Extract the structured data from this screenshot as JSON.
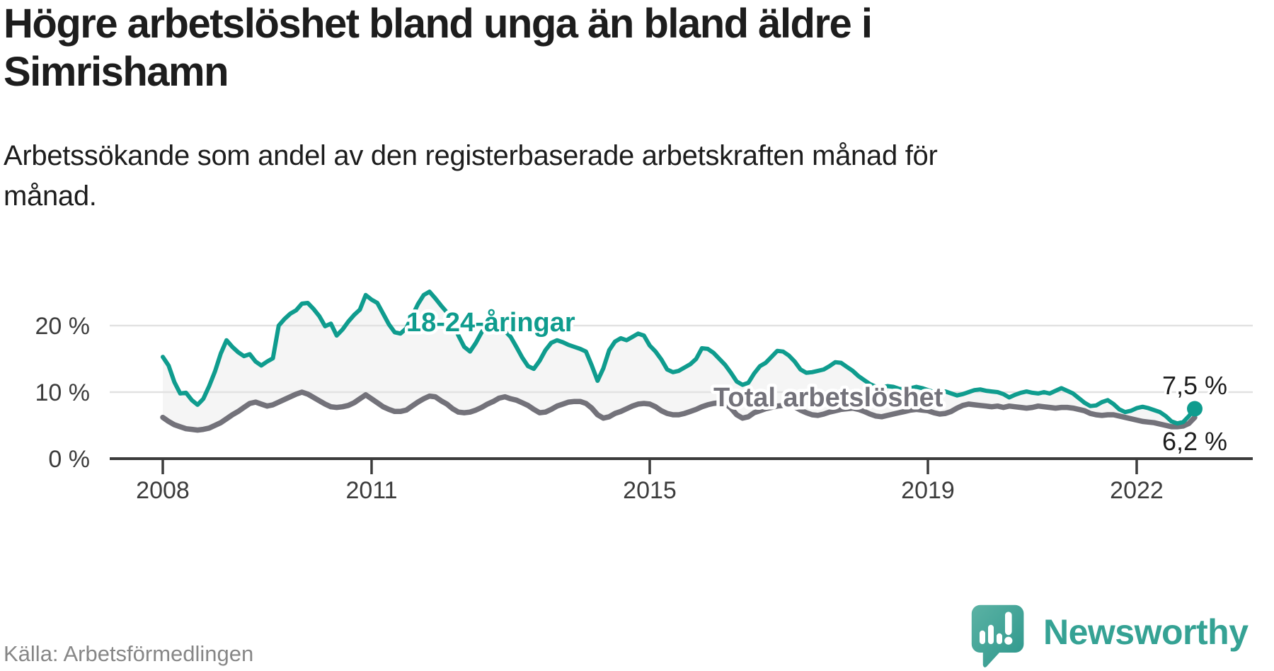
{
  "header": {
    "title_line1": "Högre arbetslöshet bland unga än bland äldre i",
    "title_line2": "Simrishamn",
    "subtitle_line1": "Arbetssökande som andel av den registerbaserade arbetskraften månad för",
    "subtitle_line2": "månad."
  },
  "footer": {
    "source": "Källa: Arbetsförmedlingen",
    "brand": "Newsworthy"
  },
  "colors": {
    "youth": "#0f9c8e",
    "total": "#73727a",
    "fill": "#f5f5f5",
    "grid": "#e2e2e2",
    "axis": "#3c3c3c",
    "tick_text": "#3c3c3c",
    "title_text": "#1d1d1d",
    "source_text": "#878787",
    "brand_text": "#35a294",
    "logo_gradient_start": "#5bb2a4",
    "logo_gradient_end": "#2d978c"
  },
  "chart_data": {
    "type": "line",
    "title": "Högre arbetslöshet bland unga än bland äldre i Simrishamn",
    "subtitle": "Arbetssökande som andel av den registerbaserade arbetskraften månad för månad.",
    "xlabel": "",
    "ylabel": "",
    "unit": "%",
    "x_start": {
      "year": 2008,
      "month": 1
    },
    "x_end": {
      "year": 2022,
      "month": 11
    },
    "x_frequency": "monthly",
    "ylim": [
      0,
      27
    ],
    "grid": "horizontal",
    "legend_position": "inline-labels",
    "x_ticks": [
      {
        "year": 2008,
        "label": "2008"
      },
      {
        "year": 2011,
        "label": "2011"
      },
      {
        "year": 2015,
        "label": "2015"
      },
      {
        "year": 2019,
        "label": "2019"
      },
      {
        "year": 2022,
        "label": "2022"
      }
    ],
    "y_ticks": [
      {
        "value": 20,
        "label": "20 %"
      },
      {
        "value": 10,
        "label": "10 %"
      },
      {
        "value": 0,
        "label": "0 %"
      }
    ],
    "series": [
      {
        "name": "18-24-åringar",
        "color": "#0f9c8e",
        "end_label": "7,5 %",
        "end_value": 7.5,
        "values": [
          15.3,
          14.0,
          11.5,
          9.8,
          9.9,
          8.8,
          8.1,
          9.0,
          10.9,
          13.1,
          15.8,
          17.8,
          16.8,
          16.0,
          15.4,
          15.7,
          14.6,
          14.0,
          14.6,
          15.1,
          20.0,
          21.0,
          21.8,
          22.3,
          23.3,
          23.4,
          22.5,
          21.4,
          19.9,
          20.3,
          18.5,
          19.4,
          20.6,
          21.6,
          22.4,
          24.6,
          23.9,
          23.4,
          21.8,
          20.2,
          19.0,
          18.8,
          19.6,
          21.4,
          23.2,
          24.6,
          25.1,
          24.1,
          23.0,
          22.0,
          20.4,
          18.5,
          16.8,
          16.1,
          17.4,
          19.0,
          20.2,
          20.6,
          20.1,
          19.2,
          18.3,
          16.8,
          15.2,
          13.9,
          13.5,
          14.7,
          16.3,
          17.4,
          17.8,
          17.5,
          17.1,
          16.8,
          16.5,
          16.1,
          14.0,
          11.7,
          13.6,
          16.3,
          17.6,
          18.1,
          17.8,
          18.3,
          18.8,
          18.5,
          17.0,
          16.1,
          14.9,
          13.4,
          13.0,
          13.2,
          13.7,
          14.2,
          15.0,
          16.6,
          16.5,
          15.9,
          15.0,
          14.1,
          12.9,
          11.6,
          11.1,
          11.4,
          12.8,
          13.9,
          14.4,
          15.3,
          16.2,
          16.1,
          15.5,
          14.6,
          13.4,
          12.9,
          13.0,
          13.2,
          13.4,
          13.9,
          14.5,
          14.4,
          13.8,
          13.2,
          12.4,
          11.8,
          11.2,
          10.8,
          10.7,
          10.9,
          10.8,
          10.5,
          10.4,
          10.6,
          10.8,
          10.6,
          10.3,
          10.0,
          9.9,
          10.1,
          9.8,
          9.5,
          9.7,
          10.0,
          10.3,
          10.4,
          10.2,
          10.1,
          10.0,
          9.7,
          9.2,
          9.6,
          9.9,
          10.1,
          9.9,
          9.8,
          10.0,
          9.8,
          10.2,
          10.6,
          10.2,
          9.8,
          9.1,
          8.4,
          7.9,
          8.0,
          8.5,
          8.8,
          8.2,
          7.4,
          7.0,
          7.2,
          7.6,
          7.8,
          7.6,
          7.3,
          7.0,
          6.4,
          5.6,
          5.3,
          5.5,
          6.4,
          7.5
        ]
      },
      {
        "name": "Total arbetslöshet",
        "color": "#73727a",
        "end_label": "6,2 %",
        "end_value": 6.2,
        "values": [
          6.2,
          5.6,
          5.1,
          4.8,
          4.5,
          4.4,
          4.3,
          4.4,
          4.6,
          5.0,
          5.4,
          6.0,
          6.6,
          7.1,
          7.7,
          8.3,
          8.5,
          8.2,
          7.9,
          8.1,
          8.5,
          8.9,
          9.3,
          9.7,
          10.0,
          9.7,
          9.2,
          8.7,
          8.2,
          7.8,
          7.7,
          7.8,
          8.0,
          8.4,
          9.0,
          9.6,
          9.0,
          8.4,
          7.8,
          7.4,
          7.1,
          7.1,
          7.3,
          7.9,
          8.5,
          9.0,
          9.4,
          9.3,
          8.7,
          8.2,
          7.5,
          7.0,
          6.9,
          7.0,
          7.3,
          7.7,
          8.2,
          8.6,
          9.1,
          9.3,
          9.0,
          8.8,
          8.4,
          8.0,
          7.4,
          6.9,
          7.0,
          7.4,
          7.9,
          8.2,
          8.5,
          8.6,
          8.6,
          8.3,
          7.6,
          6.6,
          6.1,
          6.3,
          6.8,
          7.1,
          7.5,
          7.9,
          8.2,
          8.3,
          8.2,
          7.8,
          7.2,
          6.8,
          6.6,
          6.6,
          6.8,
          7.1,
          7.4,
          7.8,
          8.1,
          8.3,
          8.4,
          8.3,
          7.6,
          6.6,
          6.1,
          6.3,
          6.9,
          7.2,
          7.5,
          7.7,
          7.9,
          8.0,
          8.0,
          7.8,
          7.3,
          6.9,
          6.6,
          6.5,
          6.7,
          7.0,
          7.2,
          7.4,
          7.5,
          7.6,
          7.4,
          7.1,
          6.7,
          6.4,
          6.3,
          6.5,
          6.7,
          6.9,
          7.1,
          7.3,
          7.4,
          7.3,
          7.2,
          6.9,
          6.7,
          6.8,
          7.1,
          7.6,
          8.0,
          8.2,
          8.1,
          8.0,
          7.9,
          7.8,
          7.9,
          7.7,
          7.9,
          7.8,
          7.7,
          7.6,
          7.7,
          7.9,
          7.8,
          7.7,
          7.6,
          7.7,
          7.7,
          7.6,
          7.4,
          7.2,
          6.8,
          6.6,
          6.5,
          6.6,
          6.6,
          6.4,
          6.2,
          6.0,
          5.8,
          5.6,
          5.5,
          5.4,
          5.2,
          5.0,
          4.8,
          4.8,
          4.9,
          5.3,
          6.2
        ]
      }
    ]
  }
}
